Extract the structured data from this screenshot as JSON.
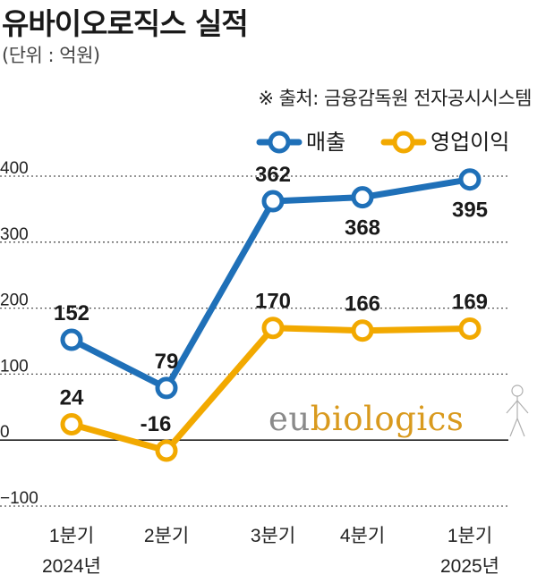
{
  "title": "유바이오로직스 실적",
  "unit": "(단위 : 억원)",
  "source": "※ 출처: 금융감독원 전자공시시스템",
  "logo": {
    "part1": "eu",
    "part2": "biologics"
  },
  "colors": {
    "revenue": "#1f70b8",
    "operating_profit": "#f2a900",
    "grid": "#555555",
    "text": "#1a1a1a"
  },
  "chart_data": {
    "type": "line",
    "categories": [
      "1분기\n2024년",
      "2분기",
      "3분기",
      "4분기",
      "1분기\n2025년"
    ],
    "x_tick_lines": [
      [
        "1분기",
        "2024년"
      ],
      [
        "2분기"
      ],
      [
        "3분기"
      ],
      [
        "4분기"
      ],
      [
        "1분기",
        "2025년"
      ]
    ],
    "ylim": [
      -100,
      400
    ],
    "yticks": [
      400,
      300,
      200,
      100,
      0,
      -100
    ],
    "ytick_labels": [
      "400",
      "300",
      "200",
      "100",
      "0",
      "−100"
    ],
    "grid": true,
    "legend_position": "top-right",
    "series": [
      {
        "name": "매출",
        "color": "#1f70b8",
        "values": [
          152,
          79,
          362,
          368,
          395
        ],
        "labels": [
          "152",
          "79",
          "362",
          "368",
          "395"
        ],
        "label_pos": [
          "above",
          "above",
          "above",
          "below",
          "below"
        ]
      },
      {
        "name": "영업이익",
        "color": "#f2a900",
        "values": [
          24,
          -16,
          170,
          166,
          169
        ],
        "labels": [
          "24",
          "-16",
          "170",
          "166",
          "169"
        ],
        "label_pos": [
          "above",
          "above",
          "above",
          "above",
          "above"
        ]
      }
    ]
  }
}
